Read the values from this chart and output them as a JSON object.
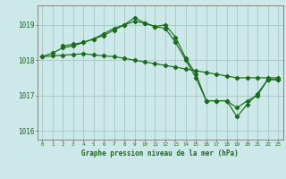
{
  "xlabel": "Graphe pression niveau de la mer (hPa)",
  "background_color": "#cce8e8",
  "plot_background": "#cce8e8",
  "line_color": "#1a6b1a",
  "grid_color": "#aacccc",
  "text_color": "#1a6b1a",
  "xlim": [
    -0.5,
    23.5
  ],
  "ylim": [
    1015.75,
    1019.55
  ],
  "yticks": [
    1016,
    1017,
    1018,
    1019
  ],
  "xticks": [
    0,
    1,
    2,
    3,
    4,
    5,
    6,
    7,
    8,
    9,
    10,
    11,
    12,
    13,
    14,
    15,
    16,
    17,
    18,
    19,
    20,
    21,
    22,
    23
  ],
  "series": [
    {
      "x": [
        0,
        1,
        2,
        3,
        4,
        5,
        6,
        7,
        8,
        9,
        10,
        11,
        12,
        13,
        14,
        15,
        16,
        17,
        18,
        19,
        20,
        21,
        22,
        23
      ],
      "y": [
        1018.1,
        1018.12,
        1018.14,
        1018.16,
        1018.18,
        1018.15,
        1018.12,
        1018.1,
        1018.05,
        1018.0,
        1017.95,
        1017.9,
        1017.85,
        1017.8,
        1017.75,
        1017.7,
        1017.65,
        1017.6,
        1017.55,
        1017.5,
        1017.5,
        1017.5,
        1017.5,
        1017.5
      ]
    },
    {
      "x": [
        0,
        1,
        2,
        3,
        4,
        5,
        6,
        7,
        8,
        9,
        10,
        11,
        12,
        13,
        14,
        15,
        16,
        17,
        18,
        19,
        20,
        21,
        22,
        23
      ],
      "y": [
        1018.1,
        1018.2,
        1018.35,
        1018.4,
        1018.5,
        1018.6,
        1018.75,
        1018.9,
        1019.0,
        1019.1,
        1019.05,
        1018.95,
        1018.9,
        1018.5,
        1018.0,
        1017.5,
        1016.85,
        1016.85,
        1016.85,
        1016.65,
        1016.85,
        1017.0,
        1017.45,
        1017.45
      ]
    },
    {
      "x": [
        2,
        3,
        4,
        5,
        6,
        7,
        8,
        9,
        10,
        11,
        12,
        13,
        14,
        15,
        16,
        17,
        18,
        19,
        20,
        21,
        22,
        23
      ],
      "y": [
        1018.4,
        1018.45,
        1018.5,
        1018.6,
        1018.7,
        1018.85,
        1019.0,
        1019.2,
        1019.05,
        1018.95,
        1019.0,
        1018.65,
        1018.05,
        1017.6,
        1016.85,
        1016.85,
        1016.85,
        1016.4,
        1016.75,
        1017.05,
        1017.45,
        1017.45
      ]
    }
  ]
}
